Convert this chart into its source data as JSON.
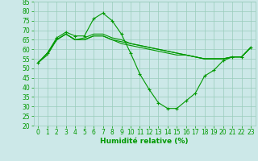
{
  "xlabel": "Humidité relative (%)",
  "bg_color": "#cce8e8",
  "grid_color": "#99ccbb",
  "line_color": "#009900",
  "xlim": [
    -0.5,
    23.5
  ],
  "ylim": [
    20,
    85
  ],
  "yticks": [
    20,
    25,
    30,
    35,
    40,
    45,
    50,
    55,
    60,
    65,
    70,
    75,
    80,
    85
  ],
  "xticks": [
    0,
    1,
    2,
    3,
    4,
    5,
    6,
    7,
    8,
    9,
    10,
    11,
    12,
    13,
    14,
    15,
    16,
    17,
    18,
    19,
    20,
    21,
    22,
    23
  ],
  "line1": [
    53,
    58,
    66,
    69,
    67,
    67,
    76,
    79,
    75,
    68,
    58,
    47,
    39,
    32,
    29,
    29,
    33,
    37,
    46,
    49,
    54,
    56,
    56,
    61
  ],
  "line2": [
    53,
    58,
    65,
    68,
    65,
    66,
    68,
    68,
    66,
    65,
    63,
    62,
    61,
    60,
    59,
    58,
    57,
    56,
    55,
    55,
    55,
    56,
    56,
    61
  ],
  "line3": [
    53,
    58,
    65,
    68,
    65,
    65,
    67,
    67,
    65,
    64,
    63,
    62,
    61,
    60,
    59,
    58,
    57,
    56,
    55,
    55,
    55,
    56,
    56,
    61
  ],
  "line4": [
    53,
    57,
    65,
    68,
    65,
    65,
    67,
    67,
    65,
    63,
    62,
    61,
    60,
    59,
    58,
    57,
    57,
    56,
    55,
    55,
    55,
    56,
    56,
    61
  ],
  "tick_fontsize": 5.5,
  "xlabel_fontsize": 6.5,
  "marker": "+",
  "markersize": 3,
  "linewidth": 0.8
}
